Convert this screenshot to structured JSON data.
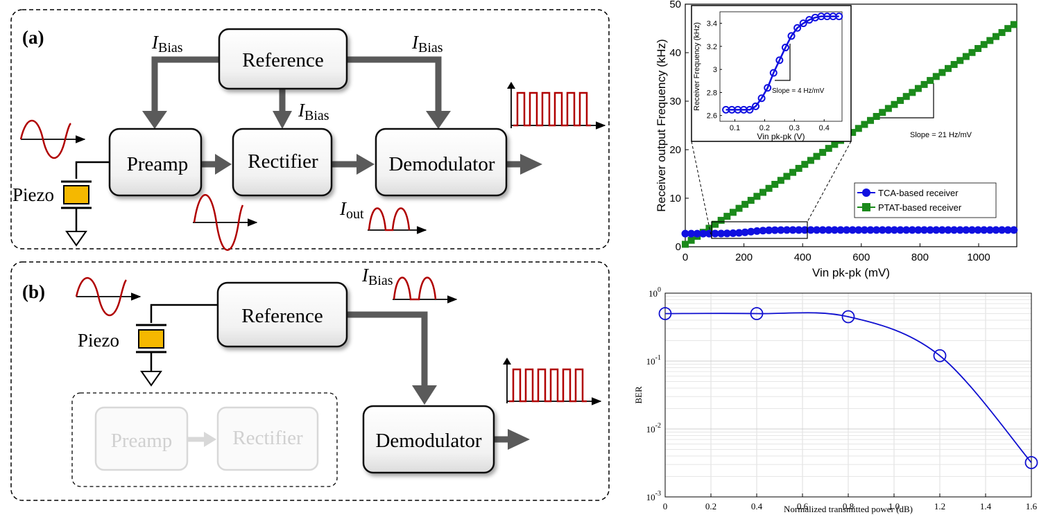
{
  "diagram": {
    "panel_a": {
      "label": "(a)",
      "blocks": {
        "reference": "Reference",
        "preamp": "Preamp",
        "rectifier": "Rectifier",
        "demodulator": "Demodulator"
      },
      "bias_letter": "I",
      "bias_sub": "Bias",
      "out_letter": "I",
      "out_sub": "out",
      "piezo": "Piezo"
    },
    "panel_b": {
      "label": "(b)",
      "blocks": {
        "reference": "Reference",
        "preamp": "Preamp",
        "rectifier": "Rectifier",
        "demodulator": "Demodulator"
      },
      "bias_letter": "I",
      "bias_sub": "Bias",
      "piezo": "Piezo"
    },
    "colors": {
      "arrow": "#5a5a5a",
      "signal": "#b00000",
      "piezo": "#f5b800",
      "faded": "#d0d0d0"
    }
  },
  "chart_data": [
    {
      "type": "line",
      "xlabel": "Vin pk-pk (mV)",
      "ylabel": "Receiver output Frequency (kHz)",
      "xlim": [
        0,
        1130
      ],
      "ylim": [
        0,
        50
      ],
      "xticks": [
        "0",
        "200",
        "400",
        "600",
        "800",
        "1000"
      ],
      "yticks": [
        "0",
        "10",
        "20",
        "30",
        "40",
        "50"
      ],
      "legend": "bottom-right",
      "series": [
        {
          "name": "TCA-based receiver",
          "color": "#1010e0",
          "marker": "circle",
          "x_start": 0,
          "x_end": 1120,
          "count": 56,
          "y_low": 2.7,
          "y_high": 3.45,
          "x_mid": 220,
          "x_width": 110
        },
        {
          "name": "PTAT-based receiver",
          "color": "#1b8a1b",
          "marker": "square",
          "x_start": 0,
          "x_end": 1120,
          "count": 56,
          "y_low": 0.5,
          "y_high": 45.8
        }
      ],
      "annotation": "Slope = 21 Hz/mV",
      "inset": {
        "xlabel": "Vin pk-pk (V)",
        "ylabel": "Receiver Frequency (kHz)",
        "xlim": [
          0.05,
          0.46
        ],
        "ylim": [
          2.55,
          3.5
        ],
        "xticks": [
          "0.1",
          "0.2",
          "0.3",
          "0.4"
        ],
        "yticks": [
          "2.6",
          "2.8",
          "3",
          "3.2",
          "3.4"
        ],
        "annotation": "Slope = 4 Hz/mV",
        "points_x": [
          0.07,
          0.09,
          0.11,
          0.13,
          0.15,
          0.17,
          0.19,
          0.21,
          0.23,
          0.25,
          0.27,
          0.29,
          0.31,
          0.33,
          0.35,
          0.37,
          0.39,
          0.41,
          0.43,
          0.45
        ],
        "points_y": [
          2.65,
          2.65,
          2.65,
          2.65,
          2.65,
          2.68,
          2.75,
          2.84,
          2.97,
          3.08,
          3.19,
          3.29,
          3.36,
          3.4,
          3.43,
          3.45,
          3.46,
          3.46,
          3.46,
          3.46
        ]
      }
    },
    {
      "type": "line",
      "xlabel": "Normalized transmitted power (dB)",
      "ylabel": "BER",
      "xlim": [
        0,
        1.6
      ],
      "ylim_log10": [
        -3,
        0
      ],
      "yscale": "log",
      "grid": true,
      "xticks": [
        "0",
        "0.2",
        "0.4",
        "0.6",
        "0.8",
        "1.0",
        "1.2",
        "1.4",
        "1.6"
      ],
      "yticks_base": "10",
      "yticks_exp": [
        "0",
        "-1",
        "-2",
        "-3"
      ],
      "series": [
        {
          "color": "#1010d0",
          "x": [
            0,
            0.4,
            0.8,
            1.2,
            1.6
          ],
          "y": [
            0.5,
            0.5,
            0.45,
            0.12,
            0.0032
          ]
        }
      ]
    }
  ]
}
